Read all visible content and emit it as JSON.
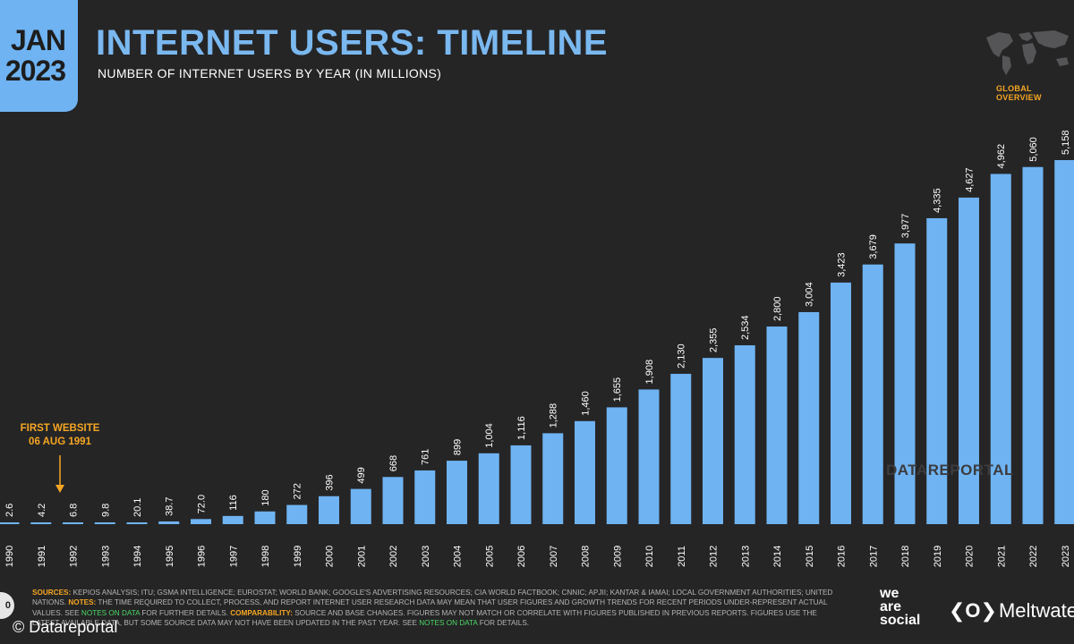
{
  "badge": {
    "month": "JAN",
    "year": "2023"
  },
  "header": {
    "title": "INTERNET USERS: TIMELINE",
    "subtitle": "NUMBER OF INTERNET USERS BY YEAR (IN MILLIONS)",
    "section": "GLOBAL OVERVIEW"
  },
  "chart_data": {
    "type": "bar",
    "title": "INTERNET USERS: TIMELINE",
    "ylabel": "Internet users (millions)",
    "xlabel": "",
    "categories": [
      "1990",
      "1991",
      "1992",
      "1993",
      "1994",
      "1995",
      "1996",
      "1997",
      "1998",
      "1999",
      "2000",
      "2001",
      "2002",
      "2003",
      "2004",
      "2005",
      "2006",
      "2007",
      "2008",
      "2009",
      "2010",
      "2011",
      "2012",
      "2013",
      "2014",
      "2015",
      "2016",
      "2017",
      "2018",
      "2019",
      "2020",
      "2021",
      "2022",
      "2023"
    ],
    "values": [
      2.6,
      4.2,
      6.8,
      9.8,
      20.1,
      38.7,
      72.0,
      116,
      180,
      272,
      396,
      499,
      668,
      761,
      899,
      1004,
      1116,
      1288,
      1460,
      1655,
      1908,
      2130,
      2355,
      2534,
      2800,
      3004,
      3423,
      3679,
      3977,
      4335,
      4627,
      4962,
      5060,
      5158
    ],
    "labels": [
      "2.6",
      "4.2",
      "6.8",
      "9.8",
      "20.1",
      "38.7",
      "72.0",
      "116",
      "180",
      "272",
      "396",
      "499",
      "668",
      "761",
      "899",
      "1,004",
      "1,116",
      "1,288",
      "1,460",
      "1,655",
      "1,908",
      "2,130",
      "2,355",
      "2,534",
      "2,800",
      "3,004",
      "3,423",
      "3,679",
      "3,977",
      "4,335",
      "4,627",
      "4,962",
      "5,060",
      "5,158"
    ],
    "ylim": [
      0,
      5158
    ],
    "grid": false,
    "bar_color": "#6fb3f2",
    "annotation": {
      "line1": "FIRST WEBSITE",
      "line2": "06 AUG 1991",
      "category": "1992"
    }
  },
  "watermark": "DATAREPORTAL",
  "footer": {
    "sources_label": "SOURCES:",
    "sources_text": " KEPIOS ANALYSIS; ITU; GSMA INTELLIGENCE; EUROSTAT; WORLD BANK; GOOGLE'S ADVERTISING RESOURCES; CIA WORLD FACTBOOK; CNNIC; APJII; KANTAR & IAMAI; LOCAL GOVERNMENT AUTHORITIES; UNITED NATIONS. ",
    "notes_label": "NOTES:",
    "notes_text": " THE TIME REQUIRED TO COLLECT, PROCESS, AND REPORT INTERNET USER RESEARCH DATA MAY MEAN THAT USER FIGURES AND GROWTH TRENDS FOR RECENT PERIODS UNDER-REPRESENT ACTUAL VALUES. SEE ",
    "notes_link": "NOTES ON DATA",
    "notes_tail": " FOR FURTHER DETAILS. ",
    "comparability_label": "COMPARABILITY:",
    "comparability_text": " SOURCE AND BASE CHANGES. FIGURES MAY NOT MATCH OR CORRELATE WITH FIGURES PUBLISHED IN PREVIOUS REPORTS. FIGURES USE THE LATEST AVAILABLE DATA, BUT SOME SOURCE DATA MAY NOT HAVE BEEN UPDATED IN THE PAST YEAR. SEE ",
    "comparability_link": "NOTES ON DATA",
    "comparability_tail": " FOR DETAILS."
  },
  "page_number": "0",
  "copyright": "© Datareportal",
  "brands": {
    "we_are_social": "we\nare\nsocial",
    "meltwater_logo": "❮O❯",
    "meltwater": "Meltwater"
  }
}
